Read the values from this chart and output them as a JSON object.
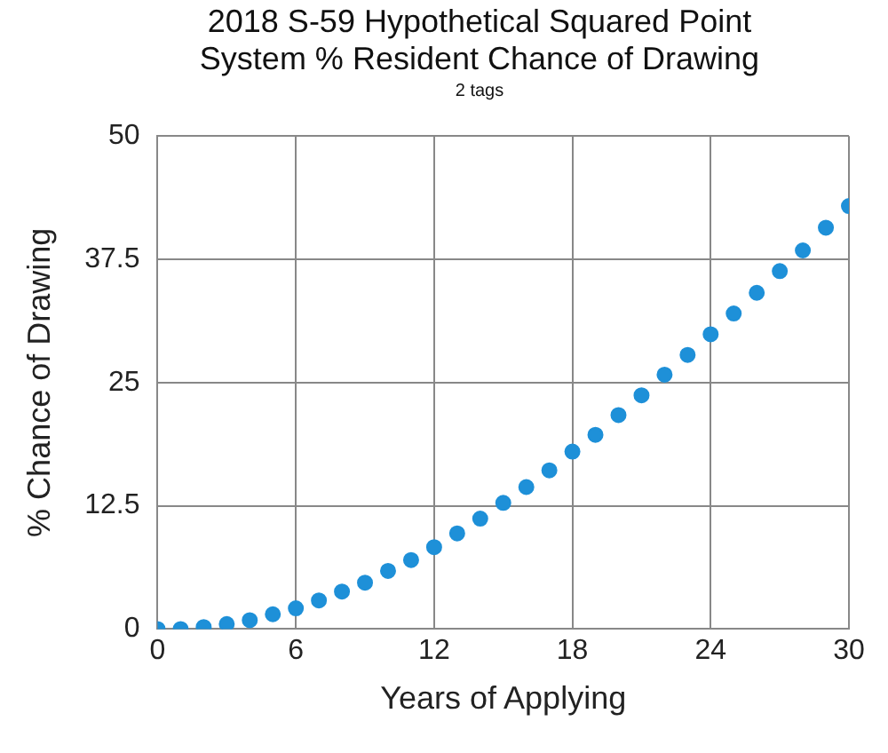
{
  "chart_data": {
    "type": "scatter",
    "title": "2018 S-59 Hypothetical Squared Point System % Resident Chance of Drawing",
    "subtitle": "2 tags",
    "xlabel": "Years of Applying",
    "ylabel": "% Chance of Drawing",
    "x": [
      0,
      1,
      2,
      3,
      4,
      5,
      6,
      7,
      8,
      9,
      10,
      11,
      12,
      13,
      14,
      15,
      16,
      17,
      18,
      19,
      20,
      21,
      22,
      23,
      24,
      25,
      26,
      27,
      28,
      29,
      30
    ],
    "series": [
      {
        "color": "#1e90d8",
        "values": [
          0,
          0,
          0.2,
          0.5,
          0.9,
          1.5,
          2.1,
          2.9,
          3.8,
          4.7,
          5.9,
          7.0,
          8.3,
          9.7,
          11.2,
          12.8,
          14.4,
          16.1,
          18.0,
          19.7,
          21.7,
          23.7,
          25.8,
          27.8,
          29.9,
          32.0,
          34.1,
          36.3,
          38.4,
          40.7,
          42.9
        ]
      }
    ],
    "xlim": [
      0,
      30
    ],
    "xticks": [
      0,
      6,
      12,
      18,
      24,
      30
    ],
    "ylim": [
      0,
      50
    ],
    "yticks": [
      0,
      12.5,
      25,
      37.5,
      50
    ],
    "grid": true,
    "legend": false,
    "marker": "circle"
  }
}
